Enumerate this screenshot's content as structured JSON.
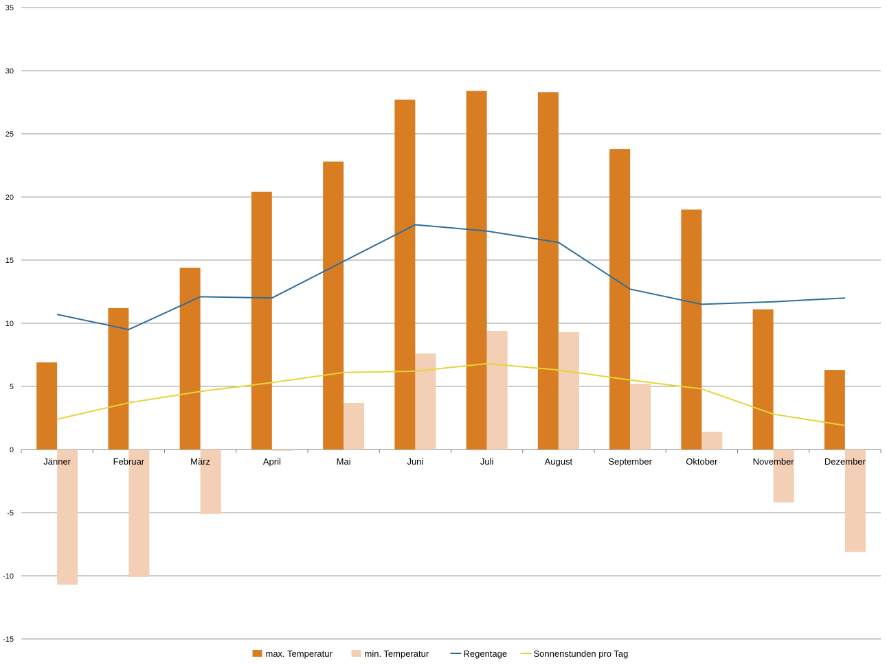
{
  "chart_data": {
    "type": "bar",
    "categories": [
      "Jänner",
      "Februar",
      "März",
      "April",
      "Mai",
      "Juni",
      "Juli",
      "August",
      "September",
      "Oktober",
      "November",
      "Dezember"
    ],
    "ylim": [
      -15,
      35
    ],
    "yticks": [
      35,
      30,
      25,
      20,
      15,
      10,
      5,
      0,
      -5,
      -10,
      -15
    ],
    "grid": true,
    "legend_position": "bottom",
    "series": [
      {
        "name": "max. Temperatur",
        "kind": "bar",
        "color": "#d97d22",
        "values": [
          6.9,
          11.2,
          14.4,
          20.4,
          22.8,
          27.7,
          28.4,
          28.3,
          23.8,
          19.0,
          11.1,
          6.3
        ]
      },
      {
        "name": "min. Temperatur",
        "kind": "bar",
        "color": "#f3cfb5",
        "values": [
          -10.7,
          -10.1,
          -5.1,
          -0.1,
          3.7,
          7.6,
          9.4,
          9.3,
          5.2,
          1.4,
          -4.2,
          -8.1
        ]
      },
      {
        "name": "Regentage",
        "kind": "line",
        "color": "#2d6e9c",
        "values": [
          10.7,
          9.5,
          12.1,
          12.0,
          14.9,
          17.8,
          17.3,
          16.4,
          12.7,
          11.5,
          11.7,
          12.0
        ]
      },
      {
        "name": "Sonnenstunden pro Tag",
        "kind": "line",
        "color": "#e6d43a",
        "values": [
          2.4,
          3.7,
          4.6,
          5.3,
          6.1,
          6.2,
          6.8,
          6.3,
          5.5,
          4.8,
          2.8,
          1.9
        ]
      }
    ]
  }
}
